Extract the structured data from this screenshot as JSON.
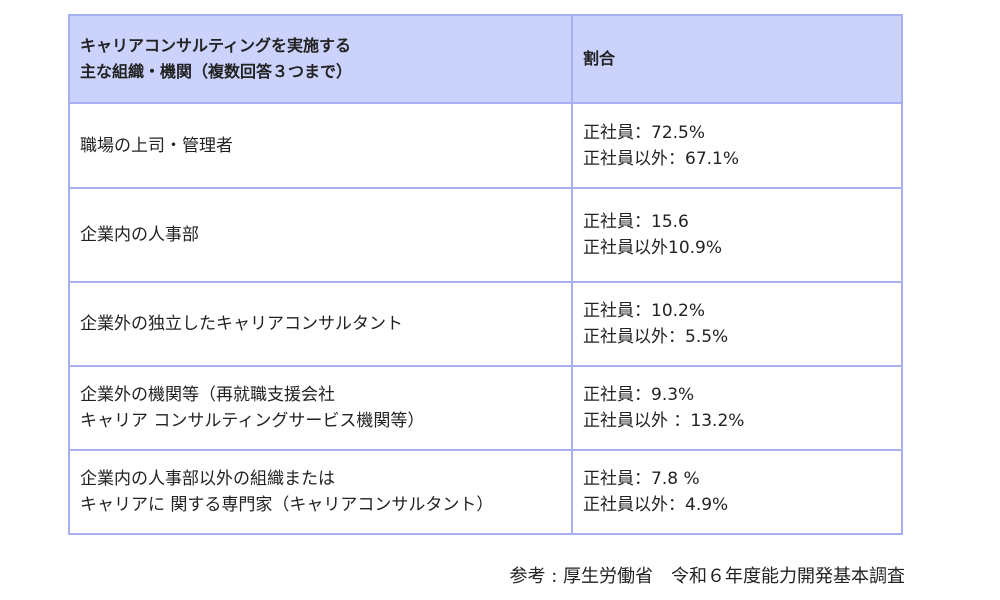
{
  "table": {
    "header": {
      "col1_line1": "キャリアコンサルティングを実施する",
      "col1_line2": "主な組織・機関（複数回答３つまで）",
      "col2": "割合"
    },
    "rows": [
      {
        "org_lines": [
          "職場の上司・管理者"
        ],
        "ratio_lines": [
          "正社員：72.5%",
          "正社員以外：67.1%"
        ]
      },
      {
        "org_lines": [
          "企業内の人事部"
        ],
        "ratio_lines": [
          "正社員：15.6",
          "正社員以外10.9%"
        ]
      },
      {
        "org_lines": [
          "企業外の独立したキャリアコンサルタント"
        ],
        "ratio_lines": [
          "正社員：10.2%",
          "正社員以外：5.5%"
        ]
      },
      {
        "org_lines": [
          "企業外の機関等（再就職支援会社",
          "キャリア コンサルティングサービス機関等）"
        ],
        "ratio_lines": [
          "正社員：9.3%",
          "正社員以外 ：13.2%"
        ]
      },
      {
        "org_lines": [
          "企業内の人事部以外の組織または",
          "キャリアに 関する専門家（キャリアコンサルタント）"
        ],
        "ratio_lines": [
          "正社員：7.8 %",
          "正社員以外：4.9%"
        ]
      }
    ]
  },
  "source": "参考 : 厚生労働省　令和６年度能力開発基本調査"
}
